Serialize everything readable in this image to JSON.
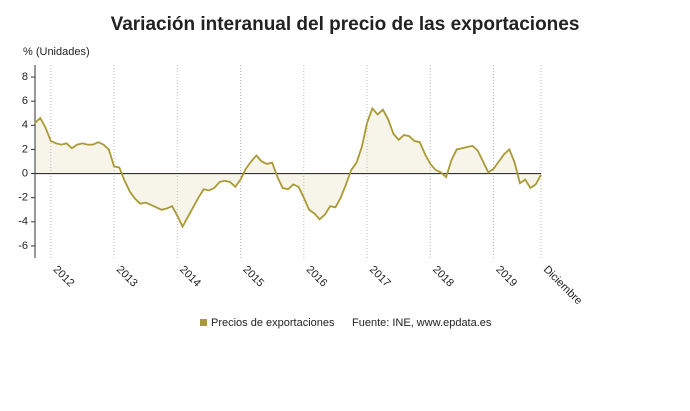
{
  "chart_data": {
    "type": "line",
    "title": "Variación interanual del precio de las exportaciones",
    "y_label": "% (Unidades)",
    "source": "Fuente: INE, www.epdata.es",
    "categories": [
      null,
      null,
      null,
      "2012",
      null,
      null,
      null,
      null,
      null,
      null,
      null,
      null,
      null,
      null,
      null,
      "2013",
      null,
      null,
      null,
      null,
      null,
      null,
      null,
      null,
      null,
      null,
      null,
      "2014",
      null,
      null,
      null,
      null,
      null,
      null,
      null,
      null,
      null,
      null,
      null,
      "2015",
      null,
      null,
      null,
      null,
      null,
      null,
      null,
      null,
      null,
      null,
      null,
      "2016",
      null,
      null,
      null,
      null,
      null,
      null,
      null,
      null,
      null,
      null,
      null,
      "2017",
      null,
      null,
      null,
      null,
      null,
      null,
      null,
      null,
      null,
      null,
      null,
      "2018",
      null,
      null,
      null,
      null,
      null,
      null,
      null,
      null,
      null,
      null,
      null,
      "2019",
      null,
      null,
      null,
      null,
      null,
      null,
      null,
      null,
      "Diciembre"
    ],
    "series": [
      {
        "name": "Precios de exportaciones",
        "color": "#a99a35",
        "values": [
          4.2,
          4.6,
          3.8,
          2.7,
          2.5,
          2.4,
          2.5,
          2.1,
          2.4,
          2.5,
          2.4,
          2.4,
          2.6,
          2.4,
          2.0,
          0.6,
          0.5,
          -0.6,
          -1.5,
          -2.1,
          -2.5,
          -2.4,
          -2.6,
          -2.8,
          -3.0,
          -2.9,
          -2.7,
          -3.5,
          -4.4,
          -3.6,
          -2.8,
          -2.0,
          -1.3,
          -1.4,
          -1.2,
          -0.7,
          -0.6,
          -0.7,
          -1.1,
          -0.5,
          0.4,
          1.0,
          1.5,
          1.0,
          0.8,
          0.9,
          -0.3,
          -1.2,
          -1.3,
          -0.9,
          -1.1,
          -2.0,
          -3.0,
          -3.3,
          -3.8,
          -3.4,
          -2.7,
          -2.8,
          -2.0,
          -0.9,
          0.3,
          0.9,
          2.2,
          4.2,
          5.4,
          4.9,
          5.3,
          4.5,
          3.3,
          2.8,
          3.2,
          3.1,
          2.7,
          2.6,
          1.6,
          0.8,
          0.3,
          0.1,
          -0.3,
          1.1,
          2.0,
          2.1,
          2.2,
          2.3,
          1.9,
          1.0,
          0.1,
          0.4,
          1.0,
          1.6,
          2.0,
          0.9,
          -0.8,
          -0.5,
          -1.2,
          -0.9,
          -0.1
        ]
      }
    ],
    "ylim": [
      -7,
      9
    ],
    "yticks": [
      -6,
      -4,
      -2,
      0,
      2,
      4,
      6,
      8
    ],
    "grid": true,
    "area_fill": "#f7f4ea"
  }
}
